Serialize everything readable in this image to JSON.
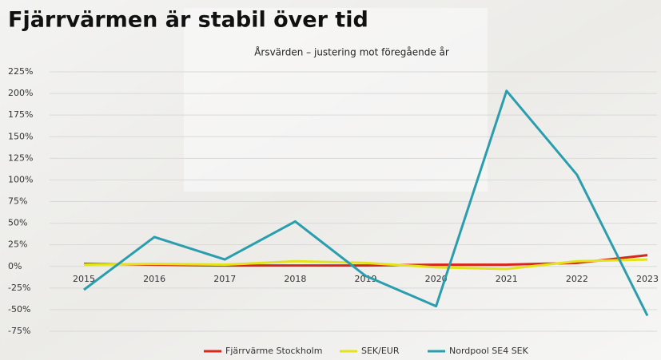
{
  "chart_data": {
    "type": "line",
    "title": "Fjärrvärmen är stabil över tid",
    "subtitle": "Årsvärden – justering mot föregående år",
    "categories": [
      "2015",
      "2016",
      "2017",
      "2018",
      "2019",
      "2020",
      "2021",
      "2022",
      "2023"
    ],
    "series": [
      {
        "name": "Fjärrvärme Stockholm",
        "color": "#d7261c",
        "values": [
          3,
          2,
          1,
          1,
          1,
          2,
          2,
          4,
          13
        ]
      },
      {
        "name": "SEK/EUR",
        "color": "#e3e31c",
        "values": [
          2,
          3,
          2,
          6,
          4,
          -1,
          -3,
          6,
          8
        ]
      },
      {
        "name": "Nordpool SE4 SEK",
        "color": "#2a9eae",
        "values": [
          -27,
          34,
          8,
          52,
          -11,
          -46,
          203,
          106,
          -57
        ]
      }
    ],
    "ylim": [
      -75,
      225
    ],
    "yticks": [
      {
        "value": -75,
        "label": "-75%"
      },
      {
        "value": -50,
        "label": "-50%"
      },
      {
        "value": -25,
        "label": "-25%"
      },
      {
        "value": 0,
        "label": "0%"
      },
      {
        "value": 25,
        "label": "25%"
      },
      {
        "value": 50,
        "label": "50%"
      },
      {
        "value": 75,
        "label": "75%"
      },
      {
        "value": 100,
        "label": "100%"
      },
      {
        "value": 125,
        "label": "125%"
      },
      {
        "value": 150,
        "label": "150%"
      },
      {
        "value": 175,
        "label": "175%"
      },
      {
        "value": 200,
        "label": "200%"
      },
      {
        "value": 225,
        "label": "225%"
      }
    ],
    "grid": true
  }
}
